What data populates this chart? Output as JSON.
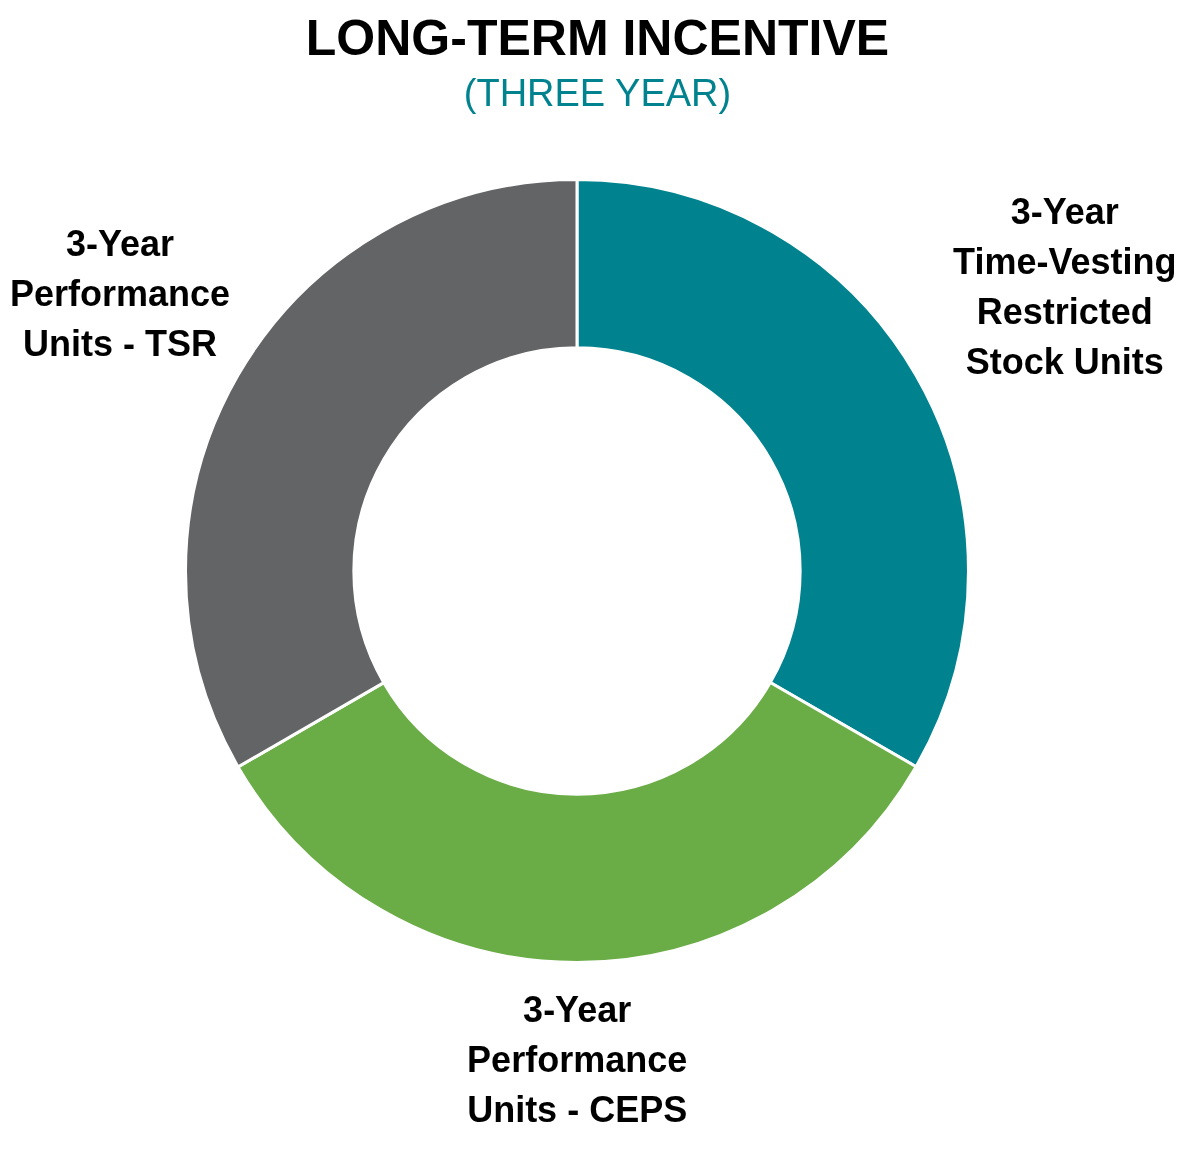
{
  "chart_data": {
    "type": "donut",
    "title": "LONG-TERM INCENTIVE",
    "subtitle": "(THREE YEAR)",
    "categories": [
      "3-Year Time-Vesting Restricted Stock Units",
      "3-Year Performance Units - CEPS",
      "3-Year Performance Units - TSR"
    ],
    "values": [
      33.33,
      33.33,
      33.34
    ],
    "colors": [
      "#00838f",
      "#6aac45",
      "#636466"
    ],
    "legend": false
  }
}
